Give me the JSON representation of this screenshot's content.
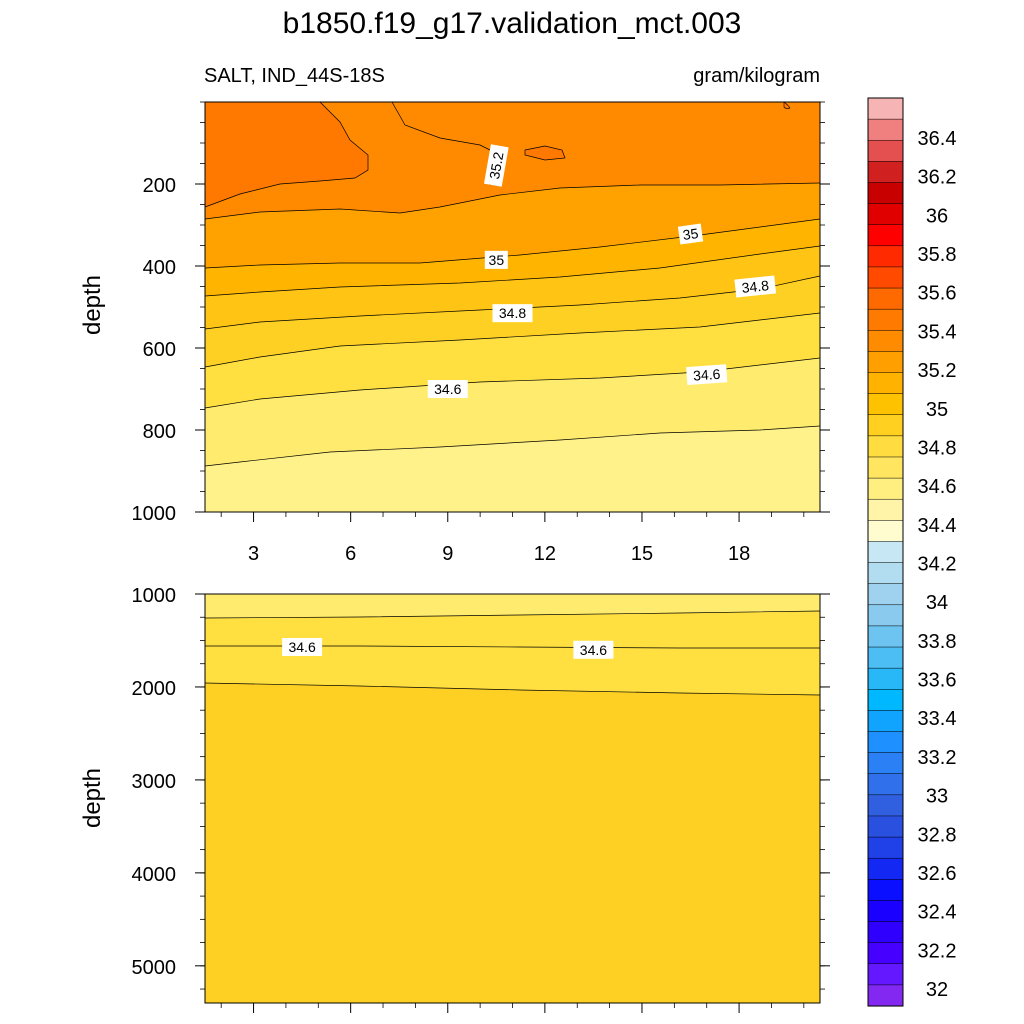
{
  "chart_data": {
    "type": "contour",
    "title": "b1850.f19_g17.validation_mct.003",
    "left_subtitle": "SALT, IND_44S-18S",
    "right_subtitle": "gram/kilogram",
    "ylabel": "depth",
    "x_ticks": [
      3,
      6,
      9,
      12,
      15,
      18
    ],
    "x_tick_labels": [
      "3",
      "6",
      "9",
      "12",
      "15",
      "18"
    ],
    "xlim": [
      1.5,
      20.5
    ],
    "panels": [
      {
        "name": "upper",
        "ylim": [
          0,
          1000
        ],
        "y_ticks": [
          200,
          400,
          600,
          800,
          1000
        ],
        "y_tick_labels": [
          "200",
          "400",
          "600",
          "800",
          "1000"
        ],
        "contour_labels": [
          {
            "text": "35.2",
            "x": 10.5,
            "y": 155,
            "angle": -80
          },
          {
            "text": "35",
            "x": 16.5,
            "y": 322,
            "angle": -8
          },
          {
            "text": "35",
            "x": 10.5,
            "y": 385,
            "angle": 0
          },
          {
            "text": "34.8",
            "x": 18.5,
            "y": 450,
            "angle": -6
          },
          {
            "text": "34.8",
            "x": 11.0,
            "y": 515,
            "angle": 0
          },
          {
            "text": "34.6",
            "x": 9.0,
            "y": 700,
            "angle": 0
          },
          {
            "text": "34.6",
            "x": 17.0,
            "y": 665,
            "angle": -4
          }
        ]
      },
      {
        "name": "lower",
        "ylim": [
          1000,
          5400
        ],
        "y_ticks": [
          1000,
          2000,
          3000,
          4000,
          5000
        ],
        "y_tick_labels": [
          "1000",
          "2000",
          "3000",
          "4000",
          "5000"
        ],
        "contour_labels": [
          {
            "text": "34.6",
            "x": 4.5,
            "y": 1570,
            "angle": 0
          },
          {
            "text": "34.6",
            "x": 13.5,
            "y": 1600,
            "angle": 0
          }
        ]
      }
    ],
    "colorbar": {
      "labels": [
        "36.4",
        "36.2",
        "36",
        "35.8",
        "35.6",
        "35.4",
        "35.2",
        "35",
        "34.8",
        "34.6",
        "34.4",
        "34.2",
        "34",
        "33.8",
        "33.6",
        "33.4",
        "33.2",
        "33",
        "32.8",
        "32.6",
        "32.4",
        "32.2",
        "32"
      ],
      "colors": [
        "#f7b4b4",
        "#f08080",
        "#e45050",
        "#d02020",
        "#c80000",
        "#e00000",
        "#ff0000",
        "#ff2a00",
        "#ff4a00",
        "#ff6a00",
        "#ff7a00",
        "#ff8c00",
        "#ffa000",
        "#ffb200",
        "#ffc200",
        "#ffd020",
        "#ffdc40",
        "#ffe560",
        "#ffee80",
        "#fff4a8",
        "#fffdd0",
        "#c7e7f4",
        "#b2dcf0",
        "#9ed2ee",
        "#8acaee",
        "#6ec4f0",
        "#4cbef4",
        "#28b8f8",
        "#00b8ff",
        "#10a4ff",
        "#1e90ff",
        "#2a80f4",
        "#3070ea",
        "#3060e0",
        "#2a50e0",
        "#2040e8",
        "#1428f4",
        "#0a10ff",
        "#1a00ff",
        "#3000ff",
        "#4600ff",
        "#6418ff",
        "#8228f0"
      ]
    },
    "fill_colors": {
      "c35_3": "#ff7800",
      "c35_1": "#ff8a00",
      "c34_9": "#ffa200",
      "c34_75": "#ffb500",
      "c34_7": "#ffc414",
      "c34_6": "#ffd024",
      "c34_5": "#ffe040",
      "c34_4": "#ffec6e",
      "c34_3": "#fff28a"
    }
  }
}
